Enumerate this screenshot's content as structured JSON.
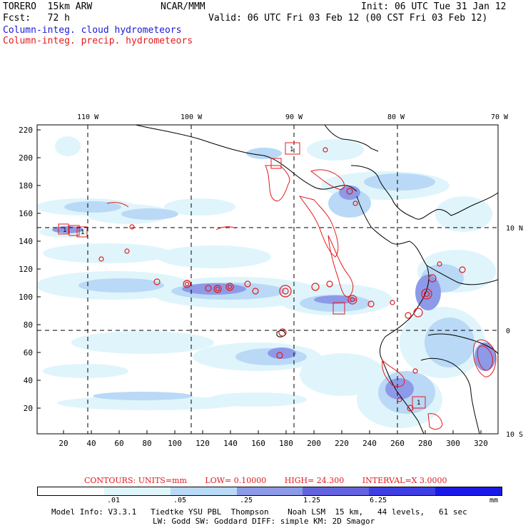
{
  "header": {
    "model": "TORERO  15km ARW",
    "center": "NCAR/MMM",
    "init": "Init: 06 UTC Tue 31 Jan 12",
    "fcst": "Fcst:   72 h",
    "valid": "Valid: 06 UTC Fri 03 Feb 12 (00 CST Fri 03 Feb 12)",
    "field1": "Column-integ. cloud hydrometeors",
    "field2": "Column-integ. precip. hydrometeors"
  },
  "colors": {
    "cloud_label": "#1a1ad8",
    "precip_label": "#e31a1c",
    "land_outline": "#000000",
    "grid": "#000000"
  },
  "axes": {
    "top_lon_labels": [
      "110 W",
      "100 W",
      "90 W",
      "80 W",
      "70 W"
    ],
    "right_lat_labels": [
      "10 N",
      "0",
      "10 S"
    ],
    "left_ticks": [
      "220",
      "200",
      "180",
      "160",
      "140",
      "120",
      "100",
      "80",
      "60",
      "40",
      "20"
    ],
    "bottom_ticks": [
      "20",
      "40",
      "60",
      "80",
      "100",
      "120",
      "140",
      "160",
      "180",
      "200",
      "220",
      "240",
      "260",
      "280",
      "300",
      "320"
    ]
  },
  "contours_info": {
    "label": "CONTOURS:  UNITS=mm",
    "low": "LOW= 0.10000",
    "high": "HIGH=  24.300",
    "interval": "INTERVAL=X  3.0000"
  },
  "colorbar": {
    "colors": [
      "#ffffff",
      "#dff5fb",
      "#b9d9f6",
      "#8d9ae8",
      "#6464e0",
      "#3e3ee3",
      "#1a1ae8"
    ],
    "ticks": [
      ".01",
      ".05",
      ".25",
      "1.25",
      "6.25",
      "mm"
    ]
  },
  "footer": {
    "line1": "Model Info: V3.3.1   Tiedtke YSU PBL  Thompson    Noah LSM  15 km,   44 levels,   61 sec",
    "line2": "LW: Godd SW: Goddard DIFF: simple KM: 2D Smagor"
  },
  "map_features": {
    "cloud_patch_colors": [
      "#dff5fb",
      "#b9d9f6",
      "#8d9ae8",
      "#6464e0"
    ],
    "precip_contour_color": "#e31a1c",
    "box_labels": [
      "1",
      "1",
      "1",
      "1"
    ]
  }
}
